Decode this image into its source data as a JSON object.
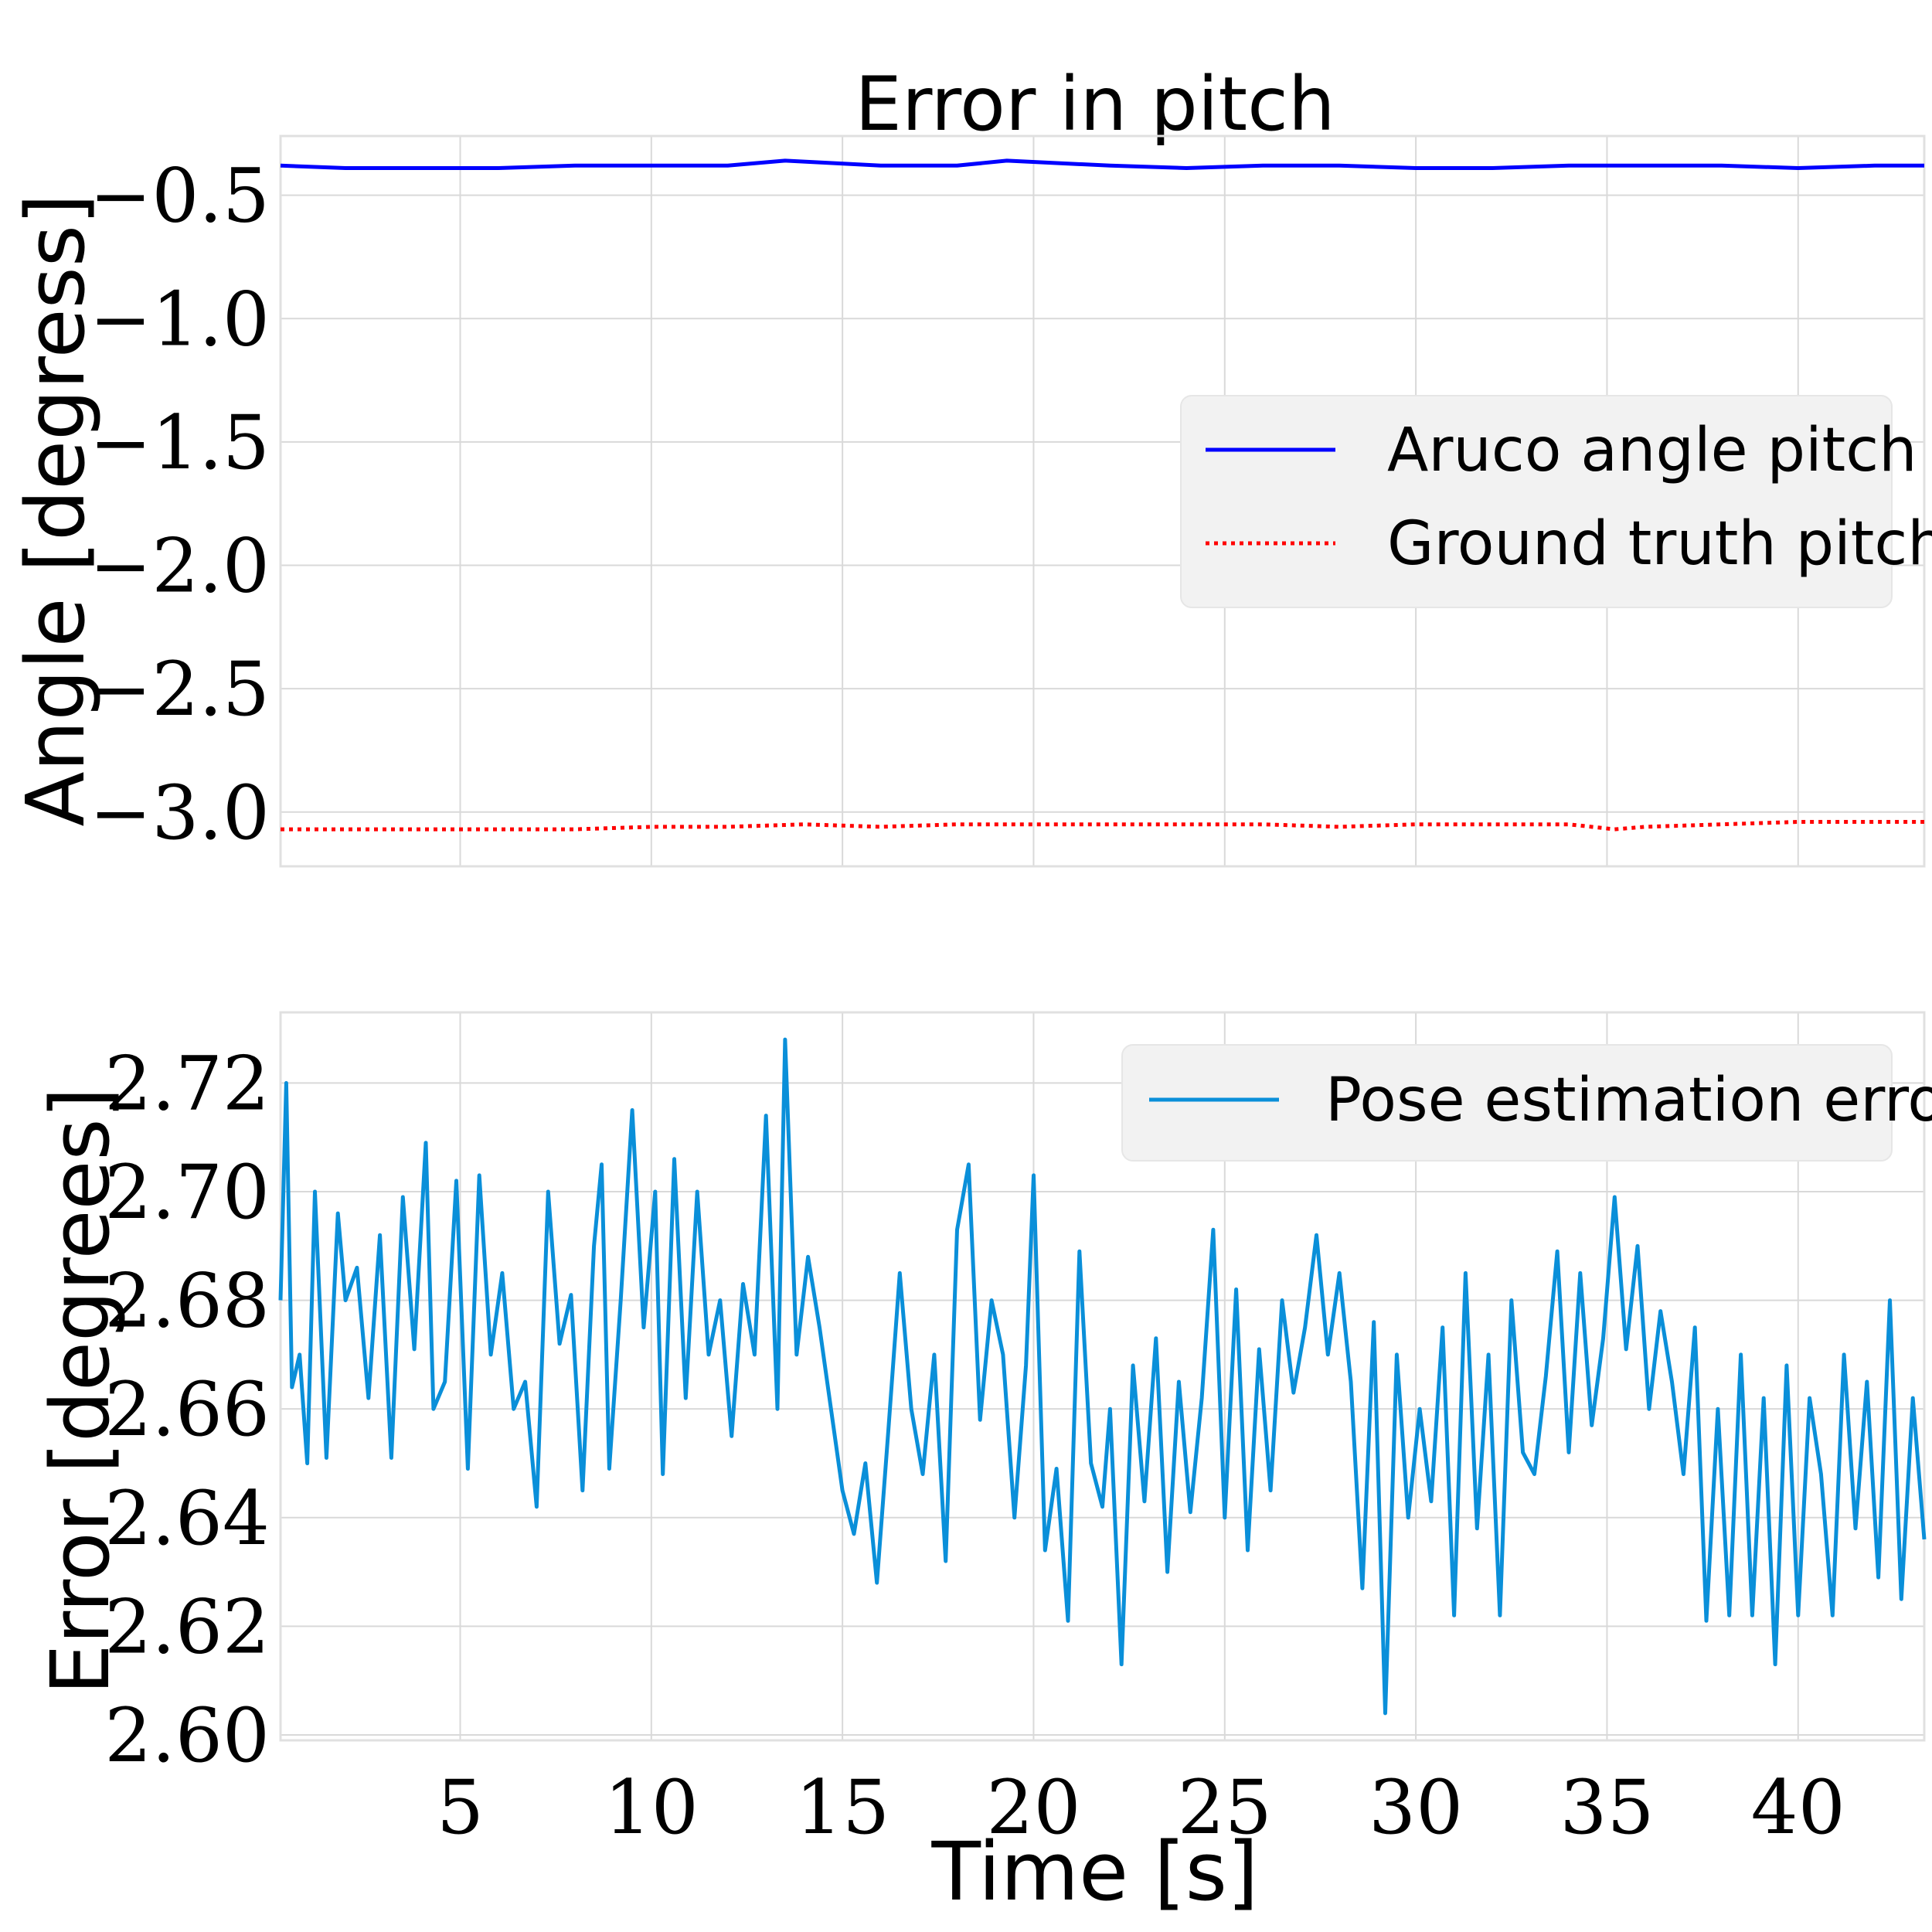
{
  "chart_data": [
    {
      "type": "line",
      "title": "Error in pitch",
      "xlabel": "",
      "ylabel": "Angle [degress]",
      "xlim": [
        0.3,
        43.3
      ],
      "ylim": [
        -3.22,
        -0.26
      ],
      "xticks": [
        5,
        10,
        15,
        20,
        25,
        30,
        35,
        40
      ],
      "xtick_labels_visible": false,
      "yticks": [
        -0.5,
        -1.0,
        -1.5,
        -2.0,
        -2.5,
        -3.0
      ],
      "ytick_labels": [
        "−0.5",
        "−1.0",
        "−1.5",
        "−2.0",
        "−2.5",
        "−3.0"
      ],
      "grid": true,
      "legend_placement": "center-right",
      "series": [
        {
          "name": "Aruco angle pitch",
          "color": "#0000ff",
          "style": "solid",
          "x": [
            0.3,
            2,
            4,
            6,
            8,
            10,
            12,
            13.5,
            16,
            18,
            19.3,
            22,
            24,
            26,
            28,
            30,
            32,
            34,
            36,
            38,
            40,
            42,
            43.3
          ],
          "y": [
            -0.38,
            -0.39,
            -0.39,
            -0.39,
            -0.38,
            -0.38,
            -0.38,
            -0.36,
            -0.38,
            -0.38,
            -0.36,
            -0.38,
            -0.39,
            -0.38,
            -0.38,
            -0.39,
            -0.39,
            -0.38,
            -0.38,
            -0.38,
            -0.39,
            -0.38,
            -0.38
          ]
        },
        {
          "name": "Ground truth pitch",
          "color": "#ff0000",
          "style": "dotted",
          "x": [
            0.3,
            2,
            4,
            6,
            8,
            10,
            12,
            14,
            16,
            18,
            20,
            22,
            24,
            26,
            28,
            30,
            32,
            34,
            35.2,
            36,
            38,
            40,
            42,
            43.3
          ],
          "y": [
            -3.07,
            -3.07,
            -3.07,
            -3.07,
            -3.07,
            -3.06,
            -3.06,
            -3.05,
            -3.06,
            -3.05,
            -3.05,
            -3.05,
            -3.05,
            -3.05,
            -3.06,
            -3.05,
            -3.05,
            -3.05,
            -3.07,
            -3.06,
            -3.05,
            -3.04,
            -3.04,
            -3.04
          ]
        }
      ]
    },
    {
      "type": "line",
      "title": "",
      "xlabel": "Time [s]",
      "ylabel": "Error [degrees]",
      "xlim": [
        0.3,
        43.3
      ],
      "ylim": [
        2.599,
        2.733
      ],
      "xticks": [
        5,
        10,
        15,
        20,
        25,
        30,
        35,
        40
      ],
      "xtick_labels": [
        "5",
        "10",
        "15",
        "20",
        "25",
        "30",
        "35",
        "40"
      ],
      "yticks": [
        2.6,
        2.62,
        2.64,
        2.66,
        2.68,
        2.7,
        2.72
      ],
      "ytick_labels": [
        "2.60",
        "2.62",
        "2.64",
        "2.66",
        "2.68",
        "2.70",
        "2.72"
      ],
      "grid": true,
      "legend_placement": "top-right",
      "series": [
        {
          "name": "Pose estimation error",
          "color": "#0a8fd9",
          "style": "solid",
          "x": [
            0.3,
            0.45,
            0.6,
            0.8,
            1.0,
            1.2,
            1.5,
            1.8,
            2.0,
            2.3,
            2.6,
            2.9,
            3.2,
            3.5,
            3.8,
            4.1,
            4.3,
            4.6,
            4.9,
            5.2,
            5.5,
            5.8,
            6.1,
            6.4,
            6.7,
            7.0,
            7.3,
            7.6,
            7.9,
            8.2,
            8.5,
            8.7,
            8.9,
            9.2,
            9.5,
            9.8,
            10.1,
            10.3,
            10.6,
            10.9,
            11.2,
            11.5,
            11.8,
            12.1,
            12.4,
            12.7,
            13.0,
            13.3,
            13.5,
            13.8,
            14.1,
            14.4,
            14.7,
            15.0,
            15.3,
            15.6,
            15.9,
            16.2,
            16.5,
            16.8,
            17.1,
            17.4,
            17.7,
            18.0,
            18.3,
            18.6,
            18.9,
            19.2,
            19.5,
            19.8,
            20.0,
            20.3,
            20.6,
            20.9,
            21.2,
            21.5,
            21.8,
            22.0,
            22.3,
            22.6,
            22.9,
            23.2,
            23.5,
            23.8,
            24.1,
            24.4,
            24.7,
            25.0,
            25.3,
            25.6,
            25.9,
            26.2,
            26.5,
            26.8,
            27.1,
            27.4,
            27.7,
            28.0,
            28.3,
            28.6,
            28.9,
            29.2,
            29.5,
            29.8,
            30.1,
            30.4,
            30.7,
            31.0,
            31.3,
            31.6,
            31.9,
            32.2,
            32.5,
            32.8,
            33.1,
            33.4,
            33.7,
            34.0,
            34.3,
            34.6,
            34.9,
            35.2,
            35.5,
            35.8,
            36.1,
            36.4,
            36.7,
            37.0,
            37.3,
            37.6,
            37.9,
            38.2,
            38.5,
            38.8,
            39.1,
            39.4,
            39.7,
            40.0,
            40.3,
            40.6,
            40.9,
            41.2,
            41.5,
            41.8,
            42.1,
            42.4,
            42.7,
            43.0,
            43.3
          ],
          "y": [
            2.68,
            2.72,
            2.664,
            2.67,
            2.65,
            2.7,
            2.651,
            2.696,
            2.68,
            2.686,
            2.662,
            2.692,
            2.651,
            2.699,
            2.671,
            2.709,
            2.66,
            2.665,
            2.702,
            2.649,
            2.703,
            2.67,
            2.685,
            2.66,
            2.665,
            2.642,
            2.7,
            2.672,
            2.681,
            2.645,
            2.69,
            2.705,
            2.649,
            2.68,
            2.715,
            2.675,
            2.7,
            2.648,
            2.706,
            2.662,
            2.7,
            2.67,
            2.68,
            2.655,
            2.683,
            2.67,
            2.714,
            2.66,
            2.728,
            2.67,
            2.688,
            2.675,
            2.66,
            2.645,
            2.637,
            2.65,
            2.628,
            2.656,
            2.685,
            2.66,
            2.648,
            2.67,
            2.632,
            2.693,
            2.705,
            2.658,
            2.68,
            2.67,
            2.64,
            2.668,
            2.703,
            2.634,
            2.649,
            2.621,
            2.689,
            2.65,
            2.642,
            2.66,
            2.613,
            2.668,
            2.643,
            2.673,
            2.63,
            2.665,
            2.641,
            2.662,
            2.693,
            2.64,
            2.682,
            2.634,
            2.671,
            2.645,
            2.68,
            2.663,
            2.675,
            2.692,
            2.67,
            2.685,
            2.665,
            2.627,
            2.676,
            2.604,
            2.67,
            2.64,
            2.66,
            2.643,
            2.675,
            2.622,
            2.685,
            2.638,
            2.67,
            2.622,
            2.68,
            2.652,
            2.648,
            2.666,
            2.689,
            2.652,
            2.685,
            2.657,
            2.673,
            2.699,
            2.671,
            2.69,
            2.66,
            2.678,
            2.665,
            2.648,
            2.675,
            2.621,
            2.66,
            2.622,
            2.67,
            2.622,
            2.662,
            2.613,
            2.668,
            2.622,
            2.662,
            2.648,
            2.622,
            2.67,
            2.638,
            2.665,
            2.629,
            2.68,
            2.625,
            2.662,
            2.636
          ]
        }
      ]
    }
  ]
}
